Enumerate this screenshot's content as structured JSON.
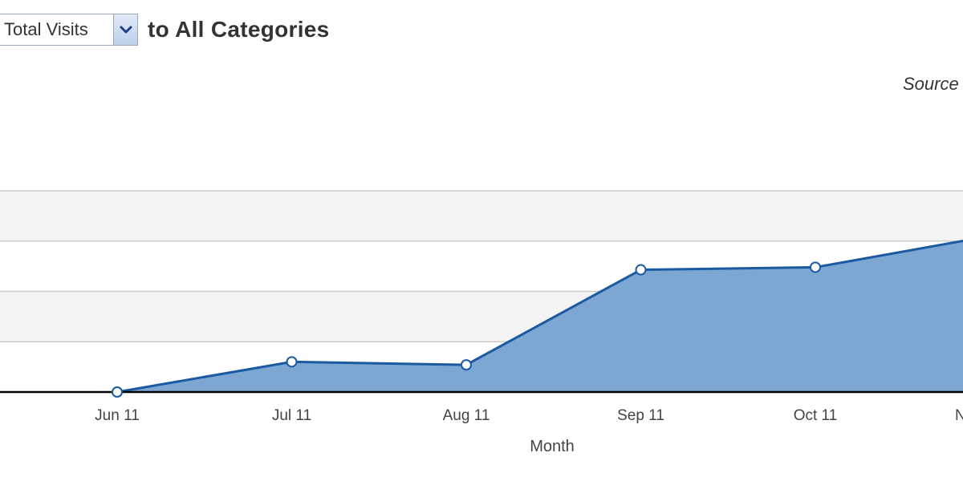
{
  "header": {
    "metric_select_value": "Total Visits",
    "title": "to All Categories"
  },
  "source_label": "Source",
  "chart_data": {
    "type": "area",
    "x": [
      "Jun 11",
      "Jul 11",
      "Aug 11",
      "Sep 11",
      "Oct 11",
      "N"
    ],
    "series": [
      {
        "values": [
          0,
          0.6,
          0.54,
          2.43,
          2.48,
          3.1
        ]
      }
    ],
    "xlabel": "Month",
    "ylabel": "",
    "ylim": [
      0,
      4
    ],
    "grid": true,
    "colors": {
      "fill": "#7ba7d2",
      "line": "#1b5aa0",
      "baseline": "#000000",
      "band": "#f3f3f3",
      "gridline": "#cccccc"
    }
  }
}
